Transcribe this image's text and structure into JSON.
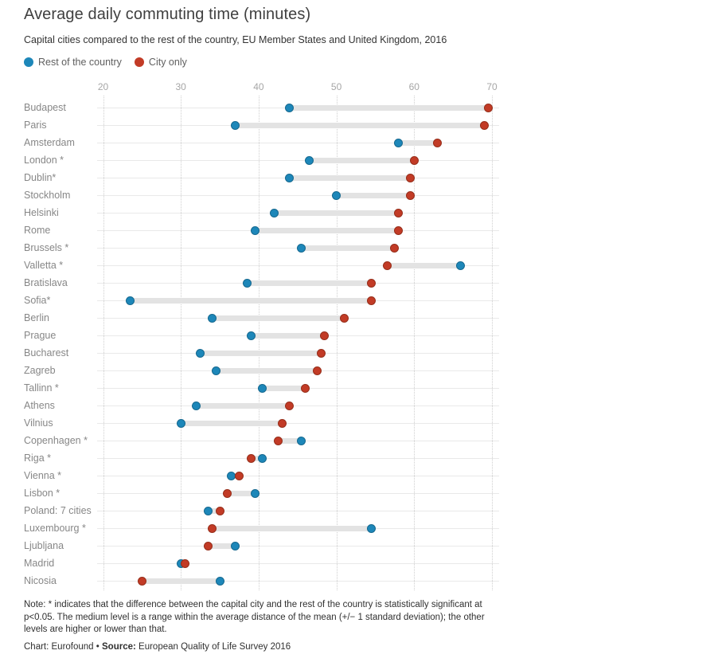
{
  "header": {
    "title": "Average daily commuting time (minutes)",
    "subtitle": "Capital cities compared to the rest of the country, EU Member States and United Kingdom, 2016"
  },
  "legend": {
    "items": [
      {
        "label": "Rest of the country",
        "color": "#1d87b9"
      },
      {
        "label": "City only",
        "color": "#c23b26"
      }
    ]
  },
  "colors": {
    "rest_fill": "#1d87b9",
    "rest_border": "#15688f",
    "city_fill": "#c23b26",
    "city_border": "#962e1a",
    "range_bar": "#e3e3e3",
    "row_line": "#e9e9e9",
    "gridline": "#cfcfcf"
  },
  "chart_data": {
    "type": "scatter",
    "subtype": "dumbbell-dot-plot",
    "title": "Average daily commuting time (minutes)",
    "subtitle": "Capital cities compared to the rest of the country, EU Member States and United Kingdom, 2016",
    "unit": "minutes",
    "orientation": "horizontal-rows",
    "x_axis": {
      "min": 20,
      "max": 70,
      "ticks": [
        20,
        30,
        40,
        50,
        60,
        70
      ],
      "position": "top",
      "grid": "dotted-vertical"
    },
    "legend_position": "top-left",
    "categories": [
      "Budapest",
      "Paris",
      "Amsterdam",
      "London *",
      "Dublin*",
      "Stockholm",
      "Helsinki",
      "Rome",
      "Brussels *",
      "Valletta *",
      "Bratislava",
      "Sofia*",
      "Berlin",
      "Prague",
      "Bucharest",
      "Zagreb",
      "Tallinn *",
      "Athens",
      "Vilnius",
      "Copenhagen *",
      "Riga *",
      "Vienna *",
      "Lisbon *",
      "Poland: 7 cities",
      "Luxembourg *",
      "Ljubljana",
      "Madrid",
      "Nicosia"
    ],
    "series": [
      {
        "name": "Rest of the country",
        "color": "#1d87b9",
        "values": [
          44,
          37,
          58,
          46.5,
          44,
          50,
          42,
          39.5,
          45.5,
          66,
          38.5,
          23.5,
          34,
          39,
          32.5,
          34.5,
          40.5,
          32,
          30,
          45.5,
          40.5,
          36.5,
          39.5,
          33.5,
          54.5,
          37,
          30,
          35
        ]
      },
      {
        "name": "City only",
        "color": "#c23b26",
        "values": [
          69.5,
          69,
          63,
          60,
          59.5,
          59.5,
          58,
          58,
          57.5,
          56.5,
          54.5,
          54.5,
          51,
          48.5,
          48,
          47.5,
          46,
          44,
          43,
          42.5,
          39,
          37.5,
          36,
          35,
          34,
          33.5,
          30.5,
          25
        ]
      }
    ]
  },
  "footer": {
    "note": "Note: * indicates that the difference between the capital city and the rest of the country is statistically significant at p<0.05. The medium level is a range within the average distance of the mean (+/− 1 standard deviation); the other levels are higher or lower than that.",
    "credit_chart": "Chart: Eurofound",
    "separator": " • ",
    "source_label": "Source:",
    "source_value": " European Quality of Life Survey 2016"
  }
}
